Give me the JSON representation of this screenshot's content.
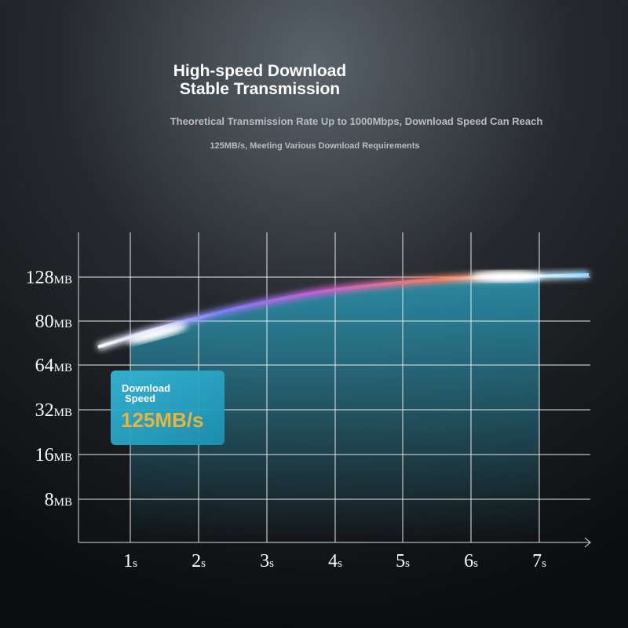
{
  "header": {
    "title": [
      "High-speed Download",
      "Stable Transmission"
    ],
    "subtitle": [
      "Theoretical Transmission Rate Up to 1000Mbps, Download Speed Can Reach",
      "125MB/s, Meeting Various Download Requirements"
    ]
  },
  "y_axis": {
    "labels": [
      {
        "number": "128",
        "unit": "MB"
      },
      {
        "number": "80",
        "unit": "MB"
      },
      {
        "number": "64",
        "unit": "MB"
      },
      {
        "number": "32",
        "unit": "MB"
      },
      {
        "number": "16",
        "unit": "MB"
      },
      {
        "number": "8",
        "unit": "MB"
      }
    ]
  },
  "x_axis": {
    "labels": [
      {
        "number": "1",
        "unit": "s"
      },
      {
        "number": "2",
        "unit": "s"
      },
      {
        "number": "3",
        "unit": "s"
      },
      {
        "number": "4",
        "unit": "s"
      },
      {
        "number": "5",
        "unit": "s"
      },
      {
        "number": "6",
        "unit": "s"
      },
      {
        "number": "7",
        "unit": "s"
      }
    ]
  },
  "badge": {
    "label": [
      "Download",
      "Speed"
    ],
    "value": "125MB/s"
  }
}
